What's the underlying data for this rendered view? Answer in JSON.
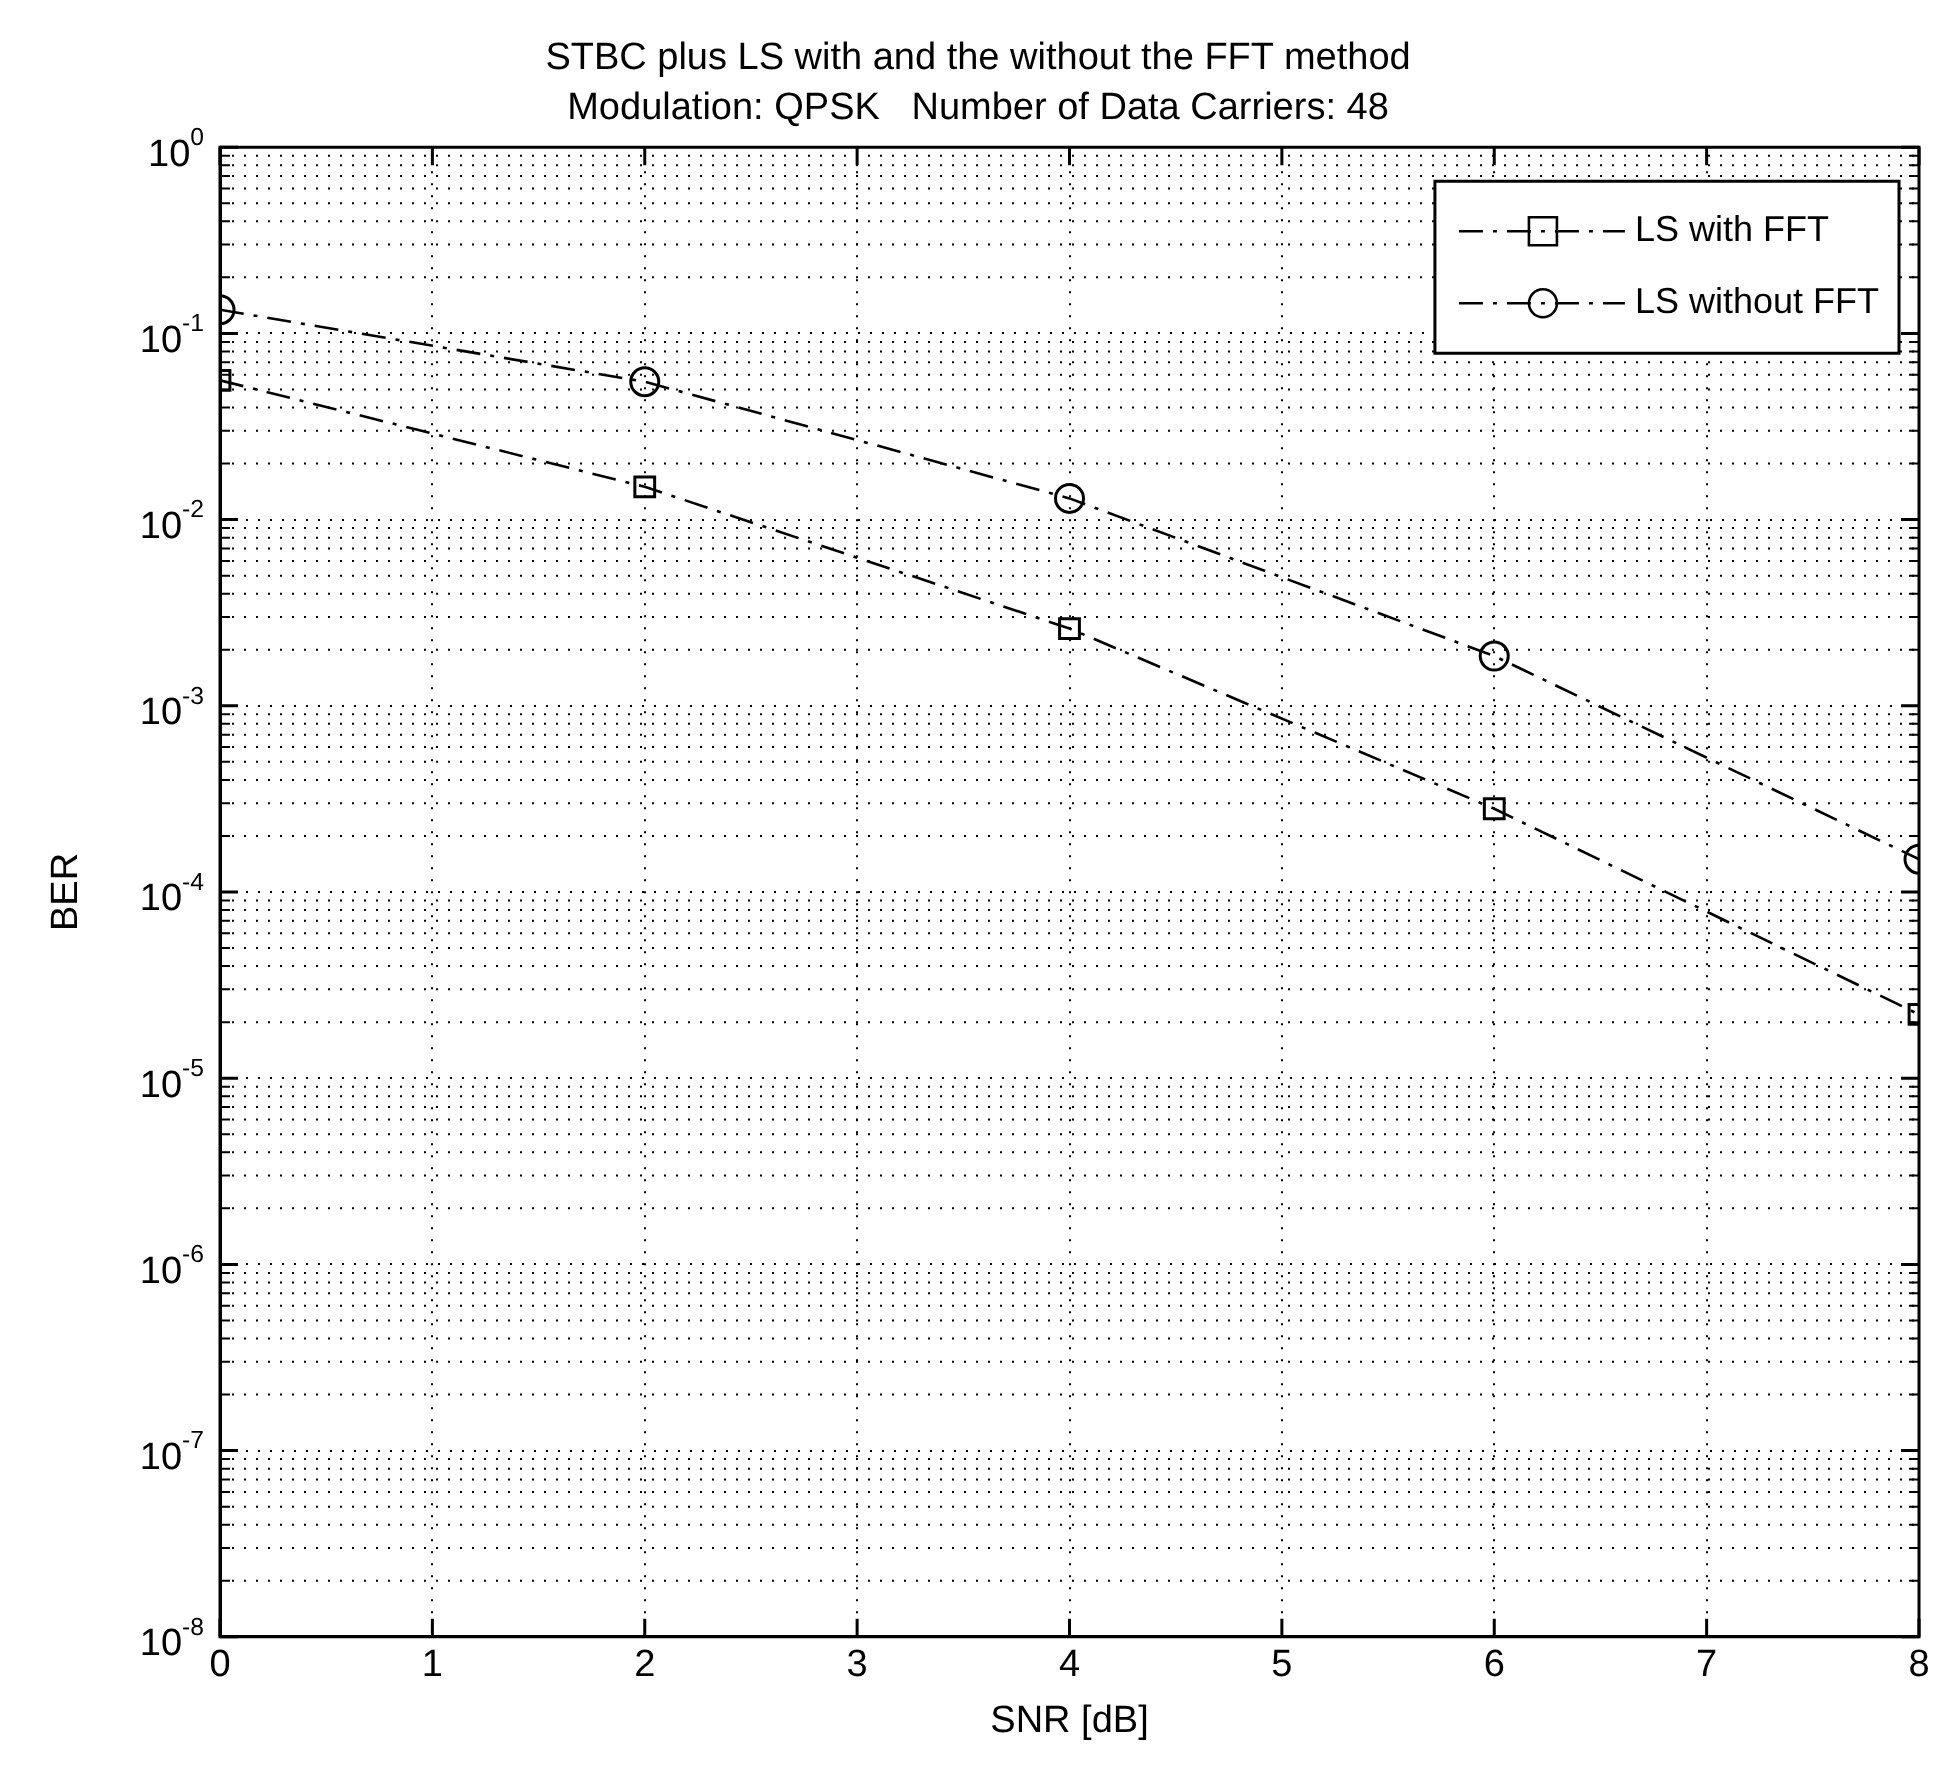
{
  "chart_data": {
    "type": "line",
    "title": "STBC plus LS with and the without the FFT method",
    "subtitle": "Modulation: QPSK   Number of Data Carriers: 48",
    "xlabel": "SNR [dB]",
    "ylabel": "BER",
    "x": [
      0,
      2,
      4,
      6,
      8
    ],
    "series": [
      {
        "name": "LS with FFT",
        "color": "#000000",
        "marker": "square",
        "values": [
          0.056,
          0.015,
          0.0026,
          0.00028,
          2.2e-05
        ]
      },
      {
        "name": "LS without FFT",
        "color": "#000000",
        "marker": "circle",
        "values": [
          0.134,
          0.055,
          0.013,
          0.00185,
          0.00015
        ]
      }
    ],
    "xlim": [
      0,
      8
    ],
    "xticks": [
      0,
      1,
      2,
      3,
      4,
      5,
      6,
      7,
      8
    ],
    "ylim": [
      1e-08,
      1
    ],
    "yticks": [
      {
        "value": 1e-08,
        "label": "10$^{-8}$"
      },
      {
        "value": 1e-07,
        "label": "10$^{-7}$"
      },
      {
        "value": 1e-06,
        "label": "10$^{-6}$"
      },
      {
        "value": 1e-05,
        "label": "10$^{-5}$"
      },
      {
        "value": 0.0001,
        "label": "10$^{-4}$"
      },
      {
        "value": 0.001,
        "label": "10$^{-3}$"
      },
      {
        "value": 0.01,
        "label": "10$^{-2}$"
      },
      {
        "value": 0.1,
        "label": "10$^{-1}$"
      },
      {
        "value": 1,
        "label": "10$^{0}$"
      }
    ],
    "log": "y",
    "grid": true,
    "legend": "top right",
    "line_style": "dashed"
  }
}
